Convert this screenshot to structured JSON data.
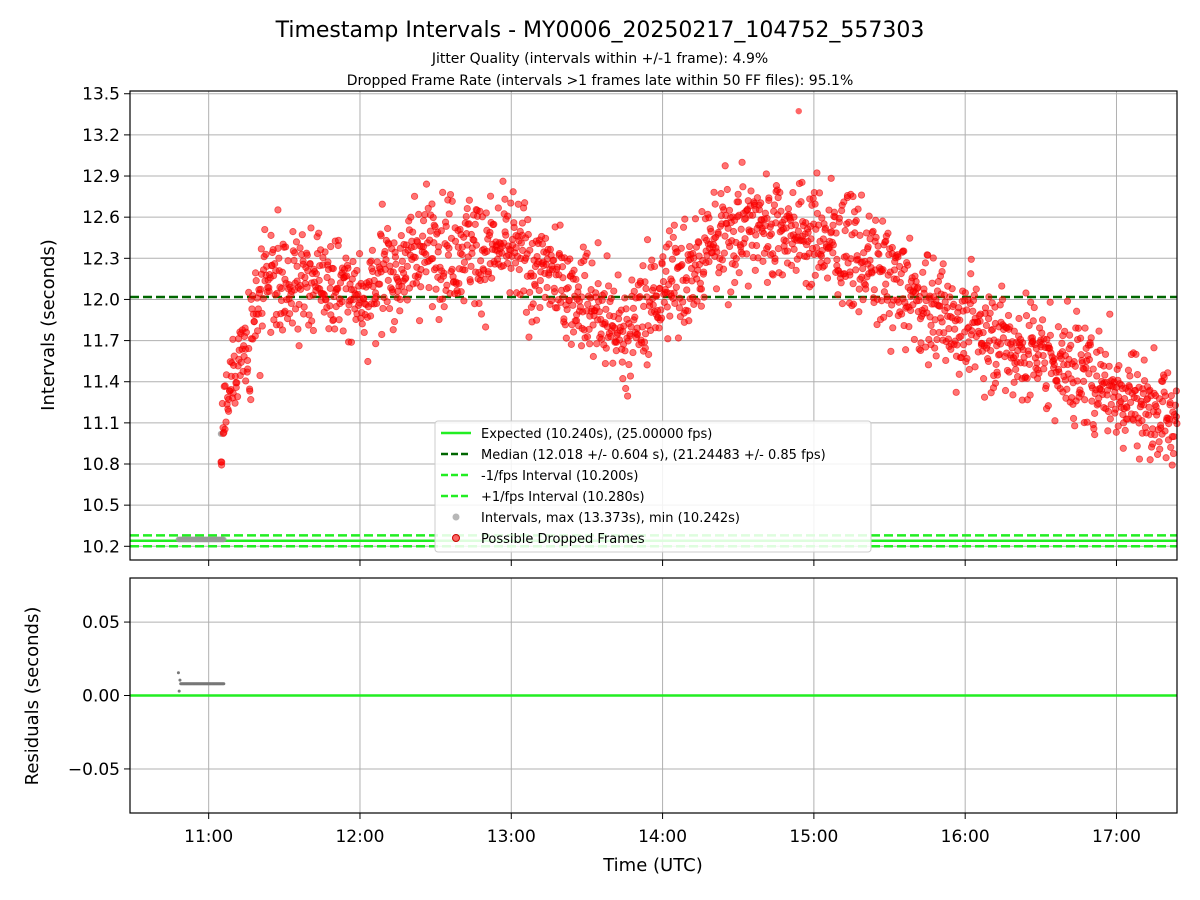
{
  "figure": {
    "title": "Timestamp Intervals - MY0006_20250217_104752_557303",
    "subtitle1": "Jitter Quality (intervals within +/-1 frame): 4.9%",
    "subtitle2": "Dropped Frame Rate (intervals >1 frames late within 50 FF files): 95.1%"
  },
  "colors": {
    "expected": "#22ee22",
    "median": "#006600",
    "fps_interval": "#22ee22",
    "intervals": "#999999",
    "dropped": "#ff0000",
    "grid": "#b0b0b0"
  },
  "chart_data": [
    {
      "type": "scatter",
      "ylabel": "Intervals (seconds)",
      "ylim": [
        10.1,
        13.52
      ],
      "yticks": [
        10.2,
        10.5,
        10.8,
        11.1,
        11.4,
        11.7,
        12.0,
        12.3,
        12.6,
        12.9,
        13.2,
        13.5
      ],
      "ytick_labels": [
        "10.2",
        "10.5",
        "10.8",
        "11.1",
        "11.4",
        "11.7",
        "12.0",
        "12.3",
        "12.6",
        "12.9",
        "13.2",
        "13.5"
      ],
      "xlim_hours": [
        10.48,
        17.4
      ],
      "xticks_hours": [
        11,
        12,
        13,
        14,
        15,
        16,
        17
      ],
      "grid": true,
      "legend_position": "lower-center",
      "hlines": [
        {
          "name": "Expected (10.240s), (25.00000 fps)",
          "y": 10.24,
          "style": "solid"
        },
        {
          "name": "Median (12.018 +/- 0.604 s), (21.24483 +/- 0.85 fps)",
          "y": 12.018,
          "style": "dashed"
        },
        {
          "name": "-1/fps Interval (10.200s)",
          "y": 10.2,
          "style": "dashed"
        },
        {
          "name": "+1/fps Interval (10.280s)",
          "y": 10.28,
          "style": "dashed"
        }
      ],
      "series": [
        {
          "name": "Intervals, max (13.373s), min (10.242s)",
          "x_range_hours": [
            10.8,
            11.1
          ],
          "y_approx": 10.25,
          "outlier": {
            "x_hours": 11.08,
            "y": 11.02
          }
        },
        {
          "name": "Possible Dropped Frames",
          "count_approx": 1900,
          "trend": [
            {
              "x_hours": 11.08,
              "y": 10.8
            },
            {
              "x_hours": 11.1,
              "y": 11.15
            },
            {
              "x_hours": 11.2,
              "y": 11.6
            },
            {
              "x_hours": 11.4,
              "y": 12.1
            },
            {
              "x_hours": 11.7,
              "y": 12.15
            },
            {
              "x_hours": 12.0,
              "y": 12.05
            },
            {
              "x_hours": 12.5,
              "y": 12.4
            },
            {
              "x_hours": 13.0,
              "y": 12.35
            },
            {
              "x_hours": 13.5,
              "y": 12.0
            },
            {
              "x_hours": 13.75,
              "y": 11.75
            },
            {
              "x_hours": 14.0,
              "y": 12.05
            },
            {
              "x_hours": 14.5,
              "y": 12.55
            },
            {
              "x_hours": 14.8,
              "y": 12.55
            },
            {
              "x_hours": 15.2,
              "y": 12.4
            },
            {
              "x_hours": 15.6,
              "y": 12.05
            },
            {
              "x_hours": 16.0,
              "y": 11.8
            },
            {
              "x_hours": 16.5,
              "y": 11.6
            },
            {
              "x_hours": 17.0,
              "y": 11.35
            },
            {
              "x_hours": 17.4,
              "y": 11.1
            }
          ],
          "max_point": {
            "x_hours": 14.9,
            "y": 13.373
          }
        }
      ]
    },
    {
      "type": "scatter",
      "xlabel": "Time (UTC)",
      "ylabel": "Residuals (seconds)",
      "ylim": [
        -0.08,
        0.08
      ],
      "yticks": [
        -0.05,
        0.0,
        0.05
      ],
      "ytick_labels": [
        "−0.05",
        "0.00",
        "0.05"
      ],
      "xticks_hours": [
        11,
        12,
        13,
        14,
        15,
        16,
        17
      ],
      "xtick_labels": [
        "11:00",
        "12:00",
        "13:00",
        "14:00",
        "15:00",
        "16:00",
        "17:00"
      ],
      "grid": true,
      "hlines": [
        {
          "y": 0.0,
          "style": "solid"
        }
      ],
      "series": [
        {
          "name": "Residuals",
          "x_range_hours": [
            10.8,
            11.1
          ],
          "y_approx": 0.008
        }
      ]
    }
  ]
}
